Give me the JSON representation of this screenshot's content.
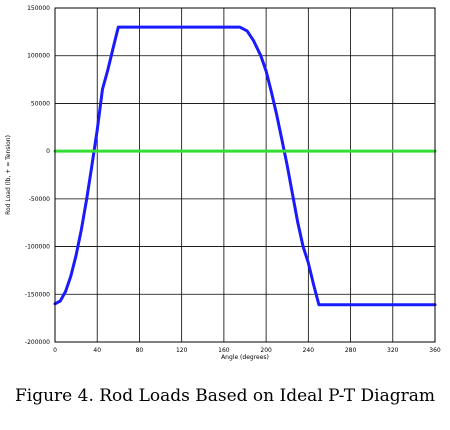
{
  "caption": "Figure 4. Rod Loads Based on Ideal P-T Diagram",
  "chart_data": {
    "type": "line",
    "title": "",
    "xlabel": "Angle (degrees)",
    "ylabel": "Rod Load (lb, + = Tension)",
    "xlim": [
      0,
      360
    ],
    "ylim": [
      -200000,
      150000
    ],
    "x_ticks": [
      0,
      40,
      80,
      120,
      160,
      200,
      240,
      280,
      320,
      360
    ],
    "y_ticks": [
      150000,
      100000,
      50000,
      0,
      -50000,
      -100000,
      -150000,
      -200000
    ],
    "grid": true,
    "series": [
      {
        "color": "#1a1aff",
        "x": [
          0,
          5,
          10,
          15,
          20,
          25,
          30,
          35,
          40,
          45,
          50,
          55,
          60,
          80,
          100,
          120,
          140,
          160,
          175,
          182,
          188,
          195,
          200,
          205,
          210,
          215,
          220,
          225,
          230,
          235,
          240,
          245,
          250,
          260,
          280,
          300,
          320,
          340,
          360
        ],
        "y": [
          -160000,
          -157000,
          -147000,
          -131000,
          -109000,
          -82000,
          -50000,
          -15000,
          22000,
          65000,
          85000,
          108000,
          130000,
          130000,
          130000,
          130000,
          130000,
          130000,
          130000,
          126000,
          116000,
          100000,
          84000,
          62000,
          38000,
          12000,
          -15000,
          -45000,
          -75000,
          -100000,
          -117000,
          -140000,
          -161000,
          -161000,
          -161000,
          -161000,
          -161000,
          -161000,
          -161000
        ]
      },
      {
        "color": "#33dd33",
        "x": [
          0,
          360
        ],
        "y": [
          0,
          0
        ]
      }
    ]
  }
}
